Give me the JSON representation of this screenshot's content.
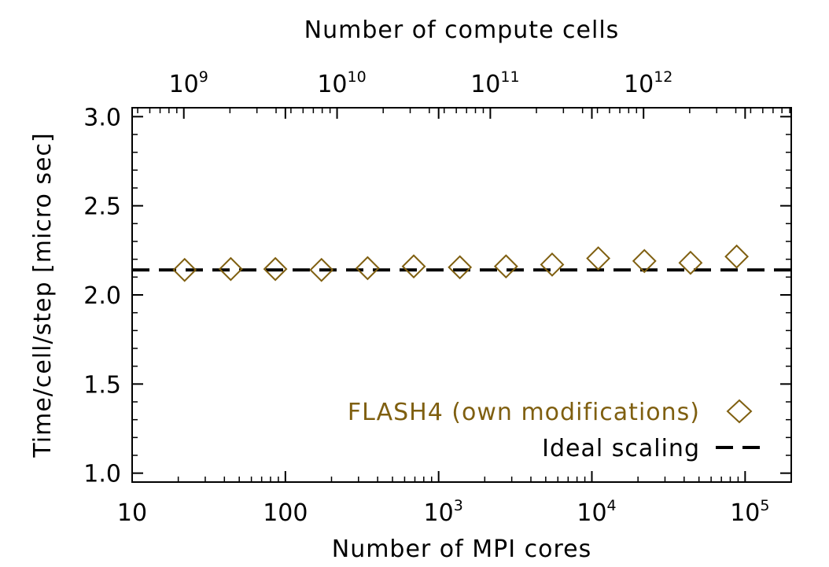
{
  "colors": {
    "series": "#7f5f10",
    "ideal": "#000000",
    "axes": "#000000",
    "background": "#ffffff"
  },
  "chart_data": {
    "type": "scatter",
    "title": "",
    "xlabel": "Number of MPI cores",
    "ylabel": "Time/cell/step [micro sec]",
    "x_top_label": "Number of compute cells",
    "xscale": "log",
    "xlim": [
      10,
      200000
    ],
    "ylim": [
      0.95,
      3.05
    ],
    "grid": false,
    "legend_position": "bottom-right",
    "x_ticks": [
      {
        "value": 10,
        "base": "10",
        "exp": ""
      },
      {
        "value": 100,
        "base": "100",
        "exp": ""
      },
      {
        "value": 1000,
        "base": "10",
        "exp": "3"
      },
      {
        "value": 10000,
        "base": "10",
        "exp": "4"
      },
      {
        "value": 100000,
        "base": "10",
        "exp": "5"
      }
    ],
    "x_top_ticks": [
      {
        "value": 1000000000,
        "base": "10",
        "exp": "9"
      },
      {
        "value": 10000000000,
        "base": "10",
        "exp": "10"
      },
      {
        "value": 100000000000,
        "base": "10",
        "exp": "11"
      },
      {
        "value": 1000000000000,
        "base": "10",
        "exp": "12"
      }
    ],
    "y_ticks": [
      "1.0",
      "1.5",
      "2.0",
      "2.5",
      "3.0"
    ],
    "series": [
      {
        "name": "FLASH4 (own modifications)",
        "marker": "diamond",
        "x": [
          22,
          44,
          86,
          172,
          344,
          688,
          1376,
          2752,
          5504,
          11008,
          22016,
          44032,
          88064
        ],
        "y": [
          2.14,
          2.145,
          2.145,
          2.14,
          2.15,
          2.16,
          2.155,
          2.16,
          2.17,
          2.205,
          2.19,
          2.18,
          2.215
        ]
      },
      {
        "name": "Ideal scaling",
        "style": "dashed-line",
        "y": 2.14
      }
    ]
  }
}
